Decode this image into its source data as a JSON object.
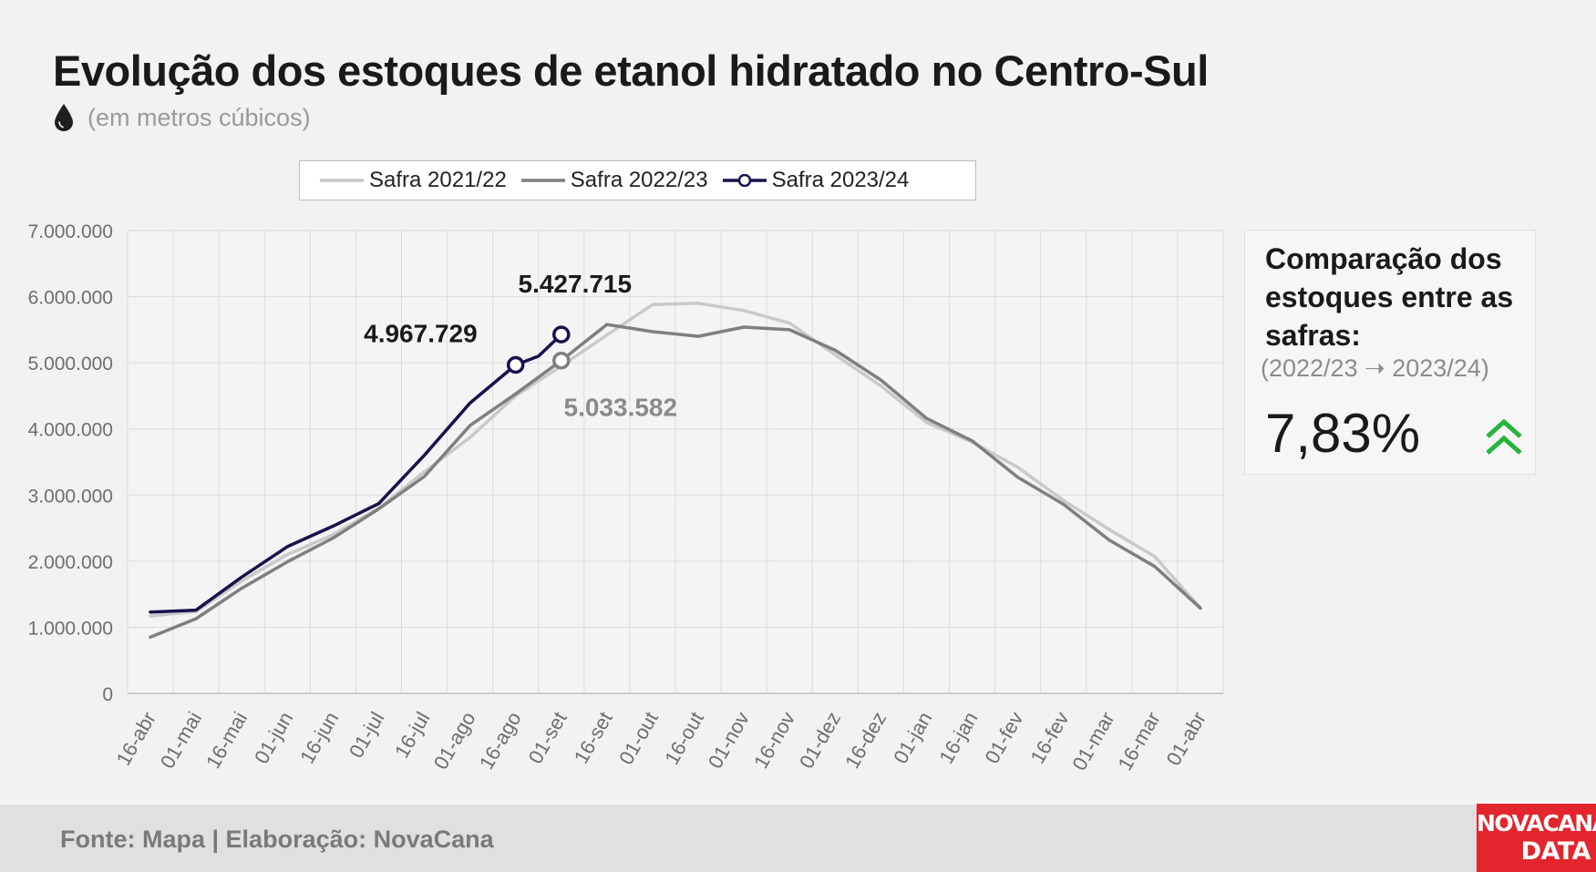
{
  "title": "Evolução dos estoques de etanol hidratado no Centro-Sul",
  "subtitle": "(em metros cúbicos)",
  "icons": {
    "unit": "water-drop-icon",
    "trend": "double-chevron-up-icon"
  },
  "colors": {
    "series_2021": "#c9c9c9",
    "series_2022": "#7f7f7f",
    "series_2023": "#15134d",
    "accent_up": "#27b43a",
    "brand": "#e3262e"
  },
  "legend": [
    {
      "label": "Safra 2021/22"
    },
    {
      "label": "Safra 2022/23"
    },
    {
      "label": "Safra 2023/24"
    }
  ],
  "chart_data": {
    "type": "line",
    "ylim": [
      0,
      7000000
    ],
    "yticks": [
      0,
      1000000,
      2000000,
      3000000,
      4000000,
      5000000,
      6000000,
      7000000
    ],
    "ytick_labels": [
      "0",
      "1.000.000",
      "2.000.000",
      "3.000.000",
      "4.000.000",
      "5.000.000",
      "6.000.000",
      "7.000.000"
    ],
    "categories": [
      "16-abr",
      "01-mai",
      "16-mai",
      "01-jun",
      "16-jun",
      "01-jul",
      "16-jul",
      "01-ago",
      "16-ago",
      "01-set",
      "16-set",
      "01-out",
      "16-out",
      "01-nov",
      "16-nov",
      "01-dez",
      "16-dez",
      "01-jan",
      "16-jan",
      "01-fev",
      "16-fev",
      "01-mar",
      "16-mar",
      "01-abr"
    ],
    "grid": true,
    "legend_position": "top",
    "series": [
      {
        "name": "Safra 2021/22",
        "x": [
          0,
          1,
          2,
          3,
          4,
          5,
          6,
          7,
          8,
          9,
          10,
          11,
          12,
          13,
          14,
          15,
          16,
          17,
          18,
          19,
          20,
          21,
          22,
          23
        ],
        "values": [
          1170000,
          1240000,
          1700000,
          2100000,
          2400000,
          2800000,
          3350000,
          3870000,
          4500000,
          4950000,
          5420000,
          5880000,
          5900000,
          5790000,
          5600000,
          5120000,
          4650000,
          4100000,
          3800000,
          3420000,
          2920000,
          2480000,
          2070000,
          1290000
        ]
      },
      {
        "name": "Safra 2022/23",
        "x": [
          0,
          1,
          2,
          3,
          4,
          5,
          6,
          7,
          8,
          9,
          10,
          11,
          12,
          13,
          14,
          15,
          16,
          17,
          18,
          19,
          20,
          21,
          22,
          23
        ],
        "values": [
          850000,
          1130000,
          1590000,
          1990000,
          2350000,
          2790000,
          3280000,
          4050000,
          4530000,
          5033582,
          5580000,
          5470000,
          5400000,
          5540000,
          5500000,
          5190000,
          4740000,
          4160000,
          3820000,
          3270000,
          2860000,
          2320000,
          1920000,
          1290000
        ]
      },
      {
        "name": "Safra 2023/24",
        "x": [
          0,
          1,
          2,
          3,
          4,
          5,
          6,
          7,
          8,
          8.5,
          9
        ],
        "values": [
          1230000,
          1260000,
          1760000,
          2220000,
          2530000,
          2870000,
          3600000,
          4390000,
          4967729,
          5100000,
          5427715
        ]
      }
    ],
    "markers": [
      {
        "series": "Safra 2023/24",
        "x": 8,
        "value": 4967729
      },
      {
        "series": "Safra 2023/24",
        "x": 9,
        "value": 5427715
      },
      {
        "series": "Safra 2022/23",
        "x": 9,
        "value": 5033582
      }
    ],
    "data_labels": [
      {
        "text": "5.427.715",
        "series": "Safra 2023/24",
        "x": 9,
        "value": 5427715
      },
      {
        "text": "4.967.729",
        "series": "Safra 2023/24",
        "x": 8,
        "value": 4967729
      },
      {
        "text": "5.033.582",
        "series": "Safra 2022/23",
        "x": 9,
        "value": 5033582
      }
    ]
  },
  "panel": {
    "heading": "Comparação dos estoques entre as safras:",
    "period": "(2022/23 ➝ 2023/24)",
    "value": "7,83%"
  },
  "footer": {
    "source": "Fonte: Mapa | Elaboração: NovaCana",
    "logo_line1": "NOVACANA",
    "logo_line2": "DATA"
  }
}
